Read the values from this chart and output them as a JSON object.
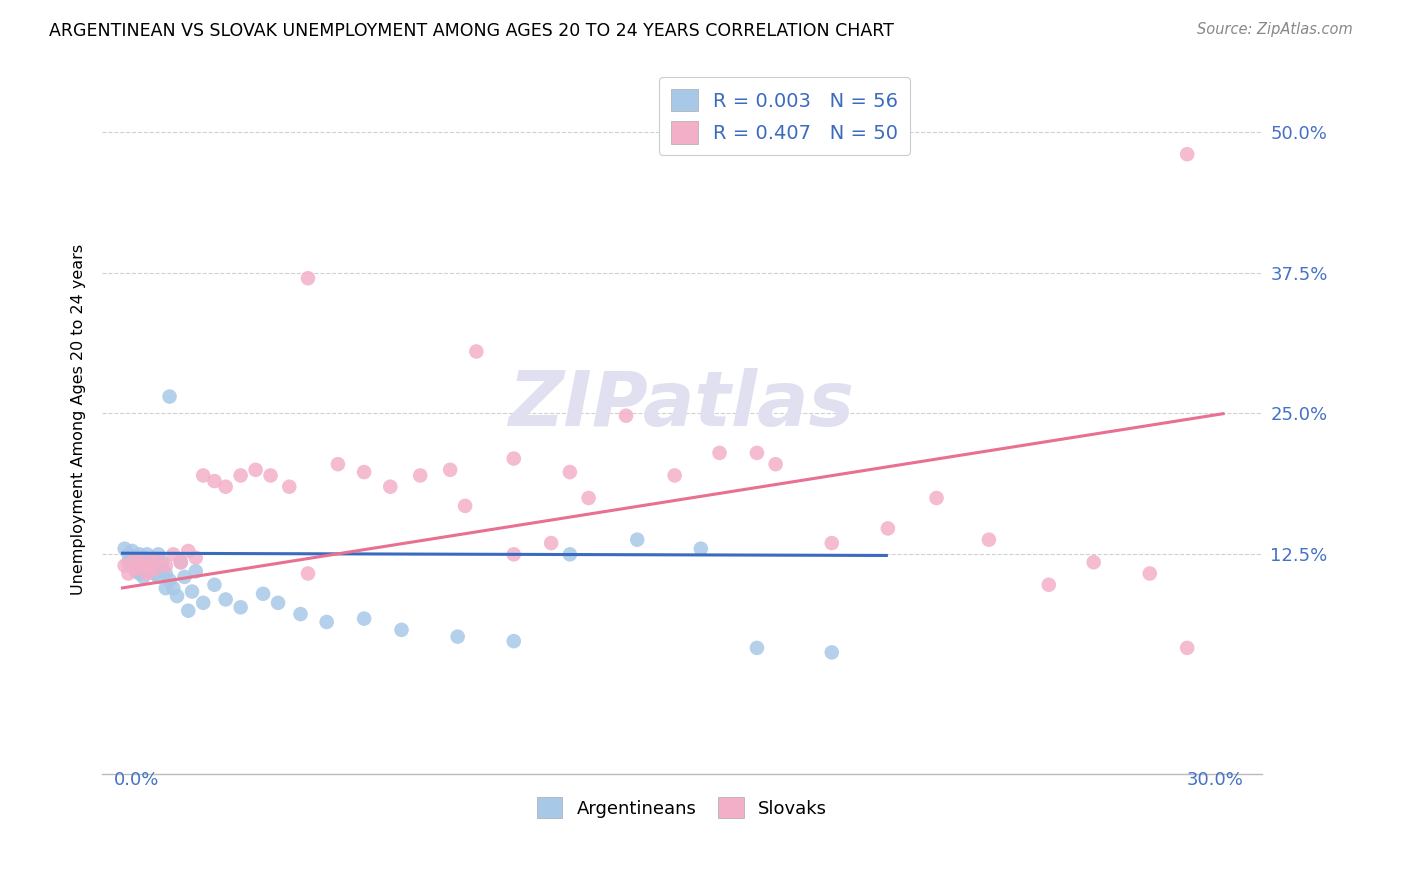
{
  "title": "ARGENTINEAN VS SLOVAK UNEMPLOYMENT AMONG AGES 20 TO 24 YEARS CORRELATION CHART",
  "source": "Source: ZipAtlas.com",
  "ylabel": "Unemployment Among Ages 20 to 24 years",
  "xlim": [
    0.0,
    0.3
  ],
  "ylim": [
    -0.07,
    0.56
  ],
  "yticks": [
    0.125,
    0.25,
    0.375,
    0.5
  ],
  "ytick_labels": [
    "12.5%",
    "25.0%",
    "37.5%",
    "50.0%"
  ],
  "blue_scatter_color": "#a8c8e8",
  "pink_scatter_color": "#f4afc8",
  "blue_line_color": "#3a6bbf",
  "pink_line_color": "#e87090",
  "grid_color": "#cccccc",
  "watermark_color": "#e0e0f0",
  "arg_x": [
    0.001,
    0.002,
    0.002,
    0.003,
    0.003,
    0.003,
    0.004,
    0.004,
    0.004,
    0.005,
    0.005,
    0.005,
    0.006,
    0.006,
    0.006,
    0.007,
    0.007,
    0.007,
    0.008,
    0.008,
    0.008,
    0.009,
    0.009,
    0.01,
    0.01,
    0.01,
    0.011,
    0.011,
    0.012,
    0.012,
    0.013,
    0.013,
    0.014,
    0.015,
    0.016,
    0.017,
    0.018,
    0.019,
    0.02,
    0.022,
    0.025,
    0.028,
    0.032,
    0.038,
    0.042,
    0.048,
    0.055,
    0.065,
    0.075,
    0.09,
    0.105,
    0.12,
    0.138,
    0.155,
    0.17,
    0.19
  ],
  "arg_y": [
    0.13,
    0.125,
    0.118,
    0.12,
    0.115,
    0.128,
    0.122,
    0.11,
    0.118,
    0.115,
    0.125,
    0.108,
    0.118,
    0.105,
    0.122,
    0.115,
    0.125,
    0.11,
    0.118,
    0.112,
    0.12,
    0.108,
    0.115,
    0.12,
    0.125,
    0.105,
    0.118,
    0.112,
    0.095,
    0.108,
    0.265,
    0.102,
    0.095,
    0.088,
    0.118,
    0.105,
    0.075,
    0.092,
    0.11,
    0.082,
    0.098,
    0.085,
    0.078,
    0.09,
    0.082,
    0.072,
    0.065,
    0.068,
    0.058,
    0.052,
    0.048,
    0.125,
    0.138,
    0.13,
    0.042,
    0.038
  ],
  "slo_x": [
    0.001,
    0.002,
    0.003,
    0.004,
    0.005,
    0.006,
    0.007,
    0.008,
    0.009,
    0.01,
    0.012,
    0.014,
    0.016,
    0.018,
    0.02,
    0.022,
    0.025,
    0.028,
    0.032,
    0.036,
    0.04,
    0.045,
    0.05,
    0.058,
    0.065,
    0.072,
    0.08,
    0.088,
    0.095,
    0.105,
    0.115,
    0.125,
    0.135,
    0.148,
    0.16,
    0.175,
    0.19,
    0.205,
    0.218,
    0.232,
    0.248,
    0.26,
    0.275,
    0.092,
    0.05,
    0.285,
    0.17,
    0.12,
    0.105,
    0.285
  ],
  "slo_y": [
    0.115,
    0.108,
    0.118,
    0.112,
    0.12,
    0.115,
    0.108,
    0.118,
    0.112,
    0.12,
    0.115,
    0.125,
    0.118,
    0.128,
    0.122,
    0.195,
    0.19,
    0.185,
    0.195,
    0.2,
    0.195,
    0.185,
    0.37,
    0.205,
    0.198,
    0.185,
    0.195,
    0.2,
    0.305,
    0.21,
    0.135,
    0.175,
    0.248,
    0.195,
    0.215,
    0.205,
    0.135,
    0.148,
    0.175,
    0.138,
    0.098,
    0.118,
    0.108,
    0.168,
    0.108,
    0.042,
    0.215,
    0.198,
    0.125,
    0.48
  ],
  "arg_line_x": [
    0.0,
    0.205
  ],
  "arg_line_y": [
    0.126,
    0.124
  ],
  "slo_line_x": [
    0.0,
    0.295
  ],
  "slo_line_y": [
    0.095,
    0.25
  ]
}
